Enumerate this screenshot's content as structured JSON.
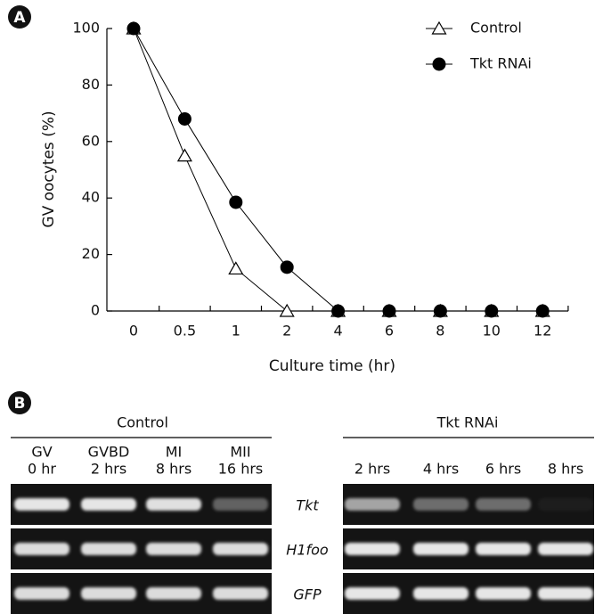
{
  "panel_labels": [
    "A",
    "B"
  ],
  "chart_data": {
    "type": "line",
    "x_label": "Culture time (hr)",
    "y_label": "GV oocytes (%)",
    "categories": [
      "0",
      "0.5",
      "1",
      "2",
      "4",
      "6",
      "8",
      "10",
      "12"
    ],
    "series": [
      {
        "name": "Control",
        "color": "#000000",
        "marker": "open-triangle",
        "values": [
          100,
          55,
          15,
          0,
          0,
          0,
          0,
          0,
          0
        ]
      },
      {
        "name": "Tkt RNAi",
        "color": "#000000",
        "marker": "filled-circle",
        "values": [
          100,
          68,
          38.5,
          15.5,
          0,
          0,
          0,
          0,
          0
        ]
      }
    ],
    "ylim": [
      0,
      100
    ],
    "yticks": [
      0,
      20,
      40,
      60,
      80,
      100
    ],
    "grid": false,
    "legend": "top-right"
  },
  "panel_b": {
    "control": {
      "title": "Control",
      "lanes": [
        [
          "GV",
          "0 hr"
        ],
        [
          "GVBD",
          "2 hrs"
        ],
        [
          "MI",
          "8 hrs"
        ],
        [
          "MII",
          "16 hrs"
        ]
      ]
    },
    "rnai": {
      "title": "Tkt RNAi",
      "lanes": [
        "2 hrs",
        "4 hrs",
        "6 hrs",
        "8 hrs"
      ]
    },
    "genes": [
      "Tkt",
      "H1foo",
      "GFP"
    ]
  }
}
